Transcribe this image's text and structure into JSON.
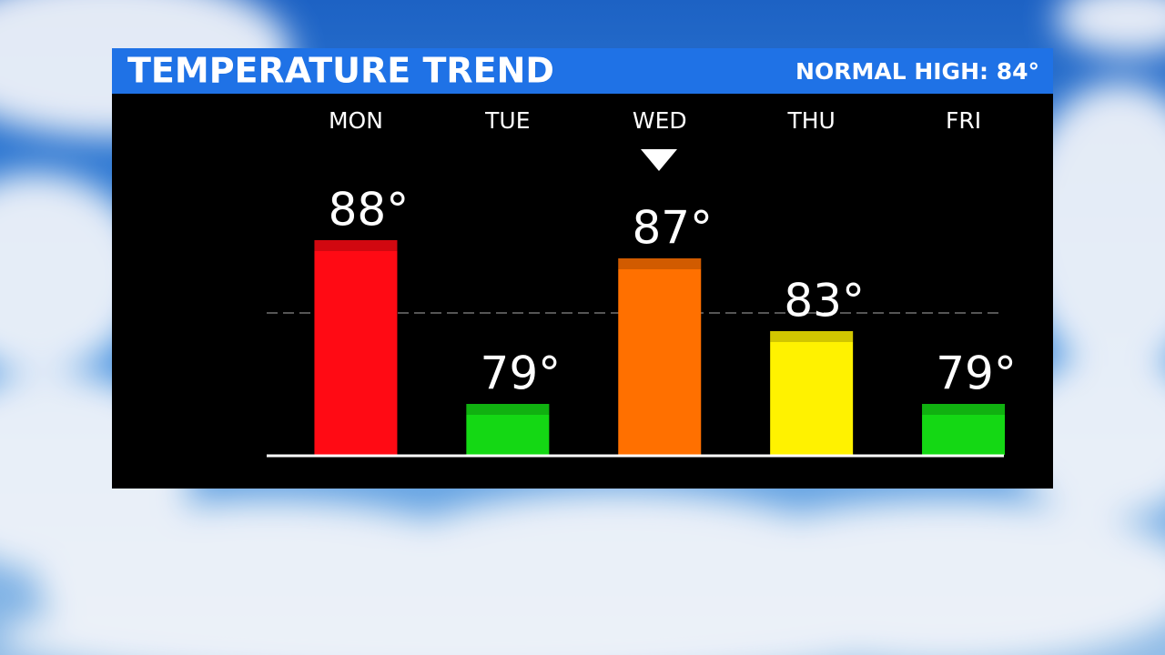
{
  "chart_data": {
    "type": "bar",
    "title": "TEMPERATURE TREND",
    "subtitle": "NORMAL HIGH: 84°",
    "categories": [
      "MON",
      "TUE",
      "WED",
      "THU",
      "FRI"
    ],
    "values": [
      88,
      79,
      87,
      83,
      79
    ],
    "value_labels": [
      "88°",
      "79°",
      "87°",
      "83°",
      "79°"
    ],
    "colors": [
      "#ff0a14",
      "#14d814",
      "#ff7000",
      "#fff200",
      "#14d814"
    ],
    "normal_high": 84,
    "ylim": [
      76.2,
      90
    ]
  }
}
